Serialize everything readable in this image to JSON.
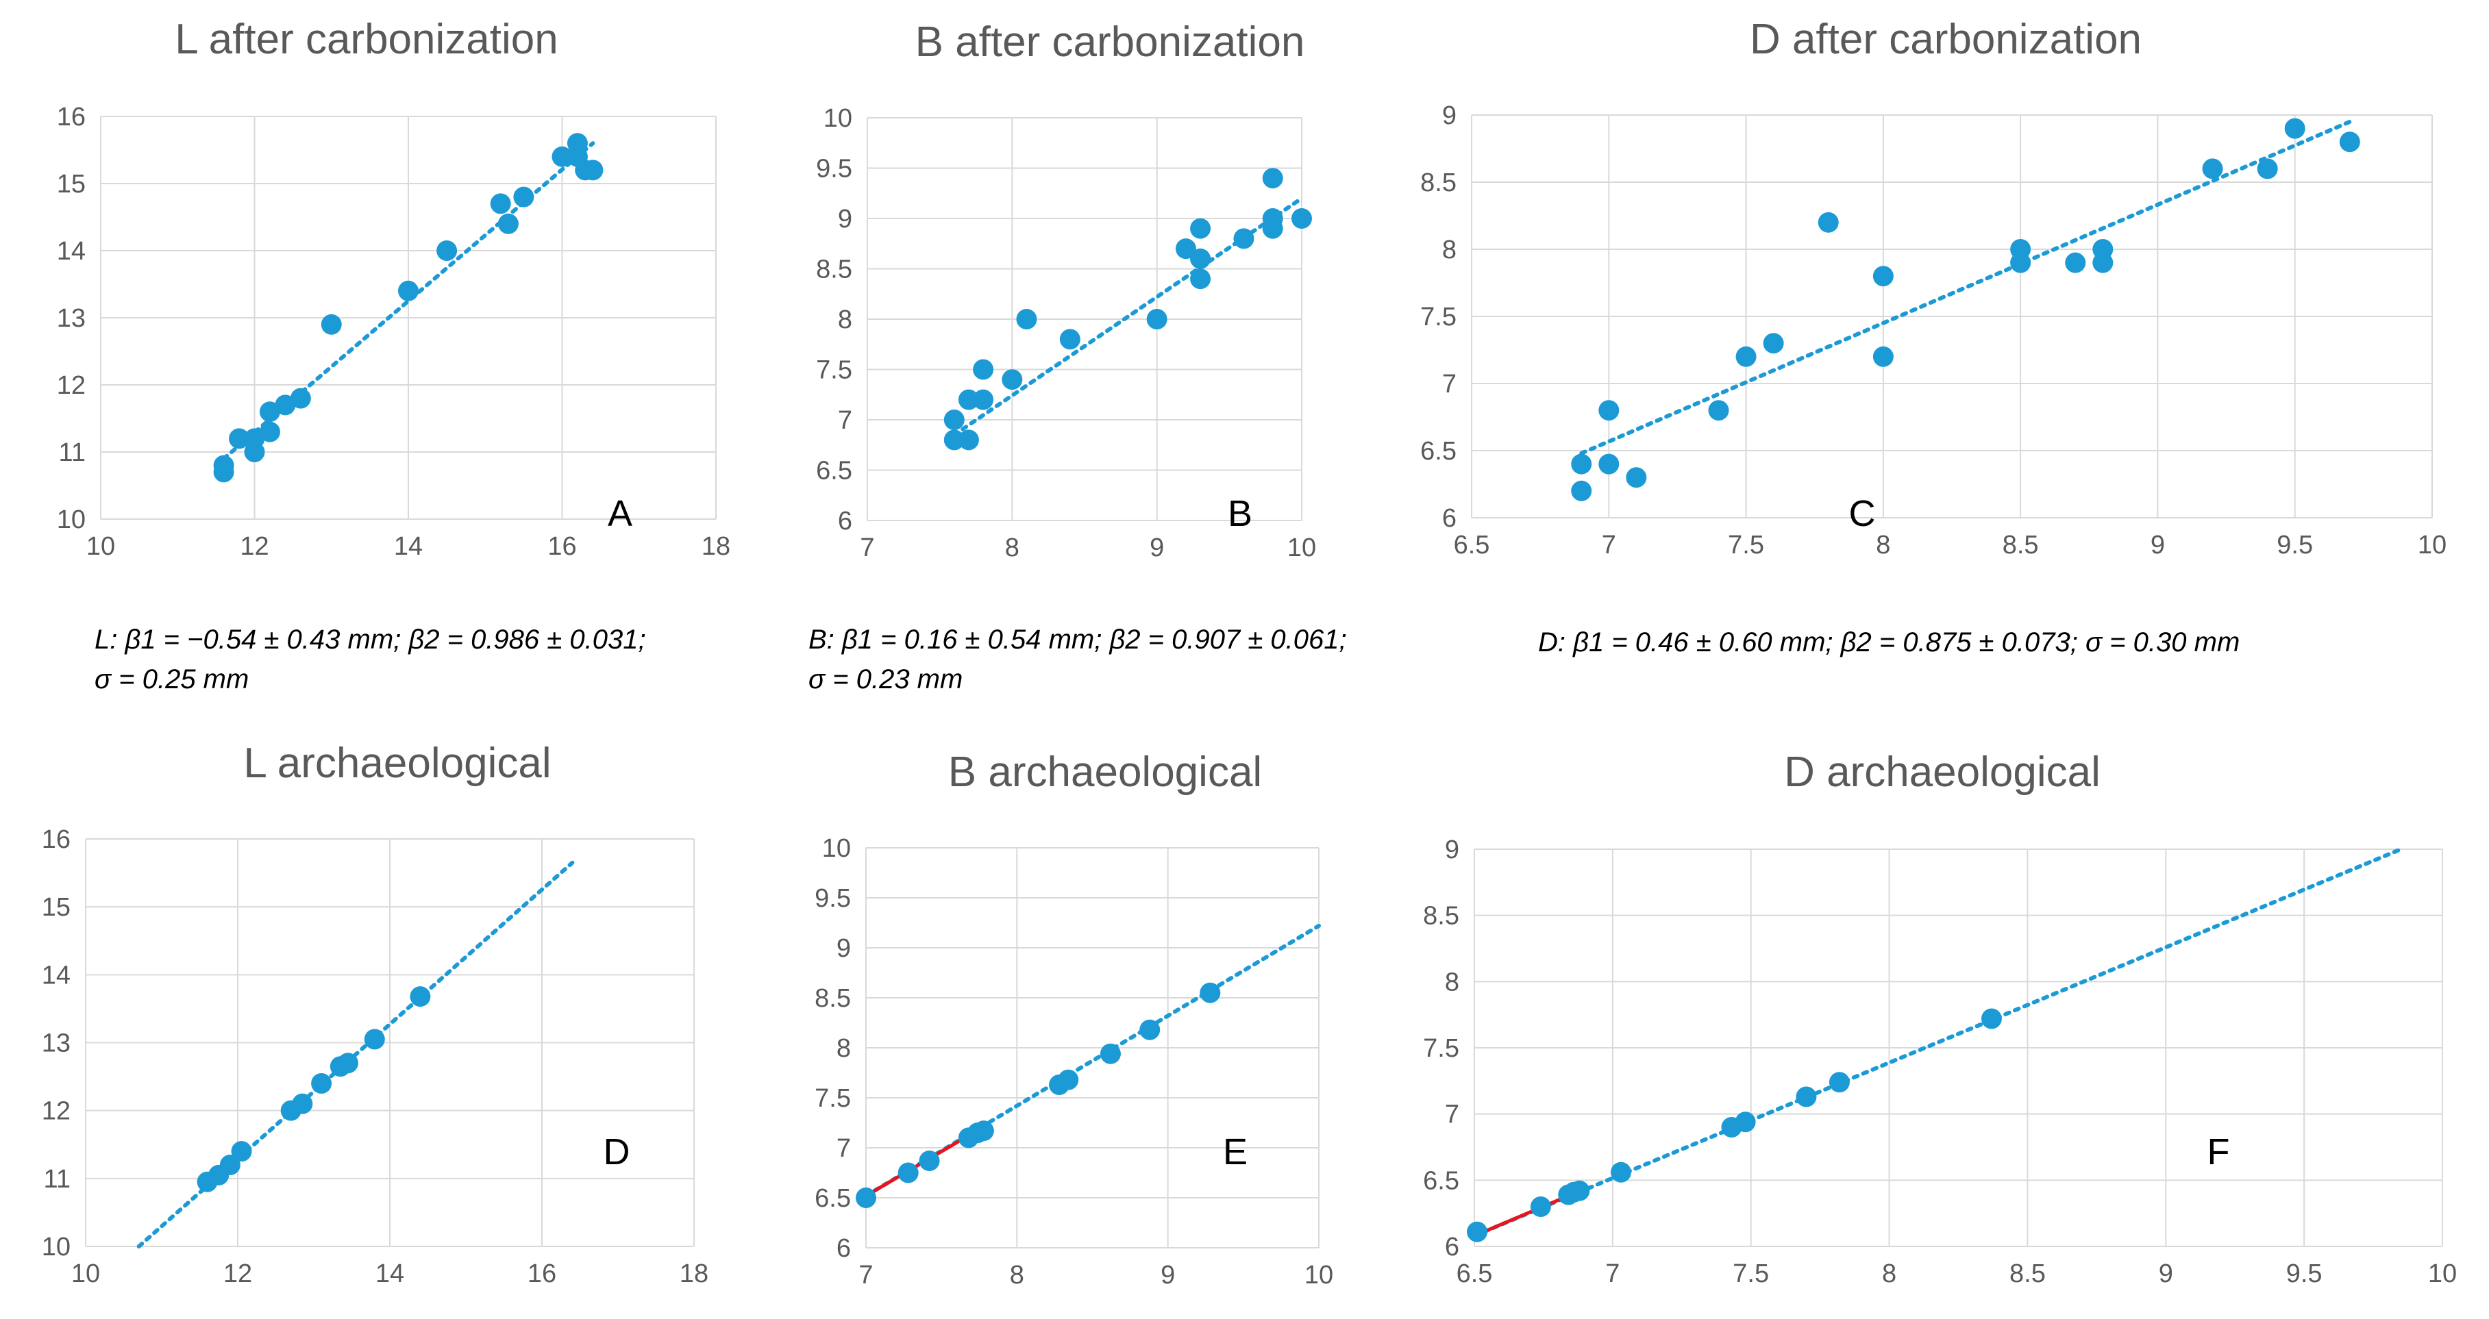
{
  "chart_data": [
    {
      "id": "A",
      "type": "scatter",
      "title": "L after carbonization",
      "panel_label": "A",
      "xlim": [
        10,
        18
      ],
      "ylim": [
        10,
        16
      ],
      "xticks": [
        "10",
        "12",
        "14",
        "16",
        "18"
      ],
      "yticks": [
        "10",
        "11",
        "12",
        "13",
        "14",
        "15",
        "16"
      ],
      "grid": true,
      "point_color": "#1c9ad6",
      "points": [
        [
          11.6,
          10.7
        ],
        [
          11.6,
          10.8
        ],
        [
          11.8,
          11.2
        ],
        [
          12.0,
          11.2
        ],
        [
          12.0,
          11.0
        ],
        [
          12.2,
          11.6
        ],
        [
          12.2,
          11.3
        ],
        [
          12.4,
          11.7
        ],
        [
          12.6,
          11.8
        ],
        [
          13.0,
          12.9
        ],
        [
          14.0,
          13.4
        ],
        [
          14.5,
          14.0
        ],
        [
          15.2,
          14.7
        ],
        [
          15.3,
          14.4
        ],
        [
          15.5,
          14.8
        ],
        [
          16.0,
          15.4
        ],
        [
          16.2,
          15.6
        ],
        [
          16.2,
          15.4
        ],
        [
          16.3,
          15.2
        ],
        [
          16.4,
          15.2
        ]
      ],
      "trendline": {
        "x": [
          11.6,
          16.4
        ],
        "y": [
          10.9,
          15.6
        ],
        "color": "#1c9ad6",
        "style": "dotted"
      }
    },
    {
      "id": "B",
      "type": "scatter",
      "title": "B after carbonization",
      "panel_label": "B",
      "xlim": [
        7,
        10
      ],
      "ylim": [
        6,
        10
      ],
      "xticks": [
        "7",
        "8",
        "9",
        "10"
      ],
      "yticks": [
        "6",
        "6.5",
        "7",
        "7.5",
        "8",
        "8.5",
        "9",
        "9.5",
        "10"
      ],
      "grid": true,
      "point_color": "#1c9ad6",
      "points": [
        [
          7.6,
          6.8
        ],
        [
          7.6,
          7.0
        ],
        [
          7.7,
          6.8
        ],
        [
          7.7,
          7.2
        ],
        [
          7.8,
          7.2
        ],
        [
          7.8,
          7.5
        ],
        [
          8.0,
          7.4
        ],
        [
          8.1,
          8.0
        ],
        [
          8.4,
          7.8
        ],
        [
          9.0,
          8.0
        ],
        [
          9.2,
          8.7
        ],
        [
          9.3,
          8.6
        ],
        [
          9.3,
          8.4
        ],
        [
          9.3,
          8.9
        ],
        [
          9.6,
          8.8
        ],
        [
          9.8,
          8.9
        ],
        [
          9.8,
          9.0
        ],
        [
          9.8,
          9.4
        ],
        [
          10.0,
          9.0
        ]
      ],
      "trendline": {
        "x": [
          7.6,
          10.0
        ],
        "y": [
          6.85,
          9.2
        ],
        "color": "#1c9ad6",
        "style": "dotted"
      }
    },
    {
      "id": "C",
      "type": "scatter",
      "title": "D after carbonization",
      "panel_label": "C",
      "xlim": [
        6.5,
        10
      ],
      "ylim": [
        6,
        9
      ],
      "xticks": [
        "6.5",
        "7",
        "7.5",
        "8",
        "8.5",
        "9",
        "9.5",
        "10"
      ],
      "yticks": [
        "6",
        "6.5",
        "7",
        "7.5",
        "8",
        "8.5",
        "9"
      ],
      "grid": true,
      "point_color": "#1c9ad6",
      "points": [
        [
          6.9,
          6.2
        ],
        [
          6.9,
          6.4
        ],
        [
          7.0,
          6.4
        ],
        [
          7.0,
          6.8
        ],
        [
          7.1,
          6.3
        ],
        [
          7.4,
          6.8
        ],
        [
          7.5,
          7.2
        ],
        [
          7.6,
          7.3
        ],
        [
          7.8,
          8.2
        ],
        [
          8.0,
          7.8
        ],
        [
          8.0,
          7.2
        ],
        [
          8.5,
          8.0
        ],
        [
          8.5,
          7.9
        ],
        [
          8.7,
          7.9
        ],
        [
          8.8,
          8.0
        ],
        [
          8.8,
          7.9
        ],
        [
          9.2,
          8.6
        ],
        [
          9.4,
          8.6
        ],
        [
          9.5,
          8.9
        ],
        [
          9.7,
          8.8
        ]
      ],
      "trendline": {
        "x": [
          6.9,
          9.7
        ],
        "y": [
          6.48,
          8.95
        ],
        "color": "#1c9ad6",
        "style": "dotted"
      }
    },
    {
      "id": "D",
      "type": "scatter",
      "title": "L archaeological",
      "panel_label": "D",
      "xlim": [
        10,
        18
      ],
      "ylim": [
        10,
        16
      ],
      "xticks": [
        "10",
        "12",
        "14",
        "16",
        "18"
      ],
      "yticks": [
        "10",
        "11",
        "12",
        "13",
        "14",
        "15",
        "16"
      ],
      "grid": true,
      "point_color": "#1c9ad6",
      "points": [
        [
          11.6,
          10.95
        ],
        [
          11.75,
          11.05
        ],
        [
          11.9,
          11.2
        ],
        [
          12.05,
          11.4
        ],
        [
          12.7,
          12.0
        ],
        [
          12.85,
          12.1
        ],
        [
          13.1,
          12.4
        ],
        [
          13.35,
          12.65
        ],
        [
          13.45,
          12.7
        ],
        [
          13.8,
          13.05
        ],
        [
          14.4,
          13.68
        ]
      ],
      "trendline": {
        "x": [
          10.7,
          16.4
        ],
        "y": [
          10.0,
          15.65
        ],
        "color": "#1c9ad6",
        "style": "dotted"
      }
    },
    {
      "id": "E",
      "type": "scatter",
      "title": "B archaeological",
      "panel_label": "E",
      "xlim": [
        7,
        10
      ],
      "ylim": [
        6,
        10
      ],
      "xticks": [
        "7",
        "8",
        "9",
        "10"
      ],
      "yticks": [
        "6",
        "6.5",
        "7",
        "7.5",
        "8",
        "8.5",
        "9",
        "9.5",
        "10"
      ],
      "grid": true,
      "point_color": "#1c9ad6",
      "points": [
        [
          7.0,
          6.5
        ],
        [
          7.28,
          6.75
        ],
        [
          7.42,
          6.87
        ],
        [
          7.68,
          7.1
        ],
        [
          7.74,
          7.15
        ],
        [
          7.78,
          7.17
        ],
        [
          8.28,
          7.63
        ],
        [
          8.34,
          7.68
        ],
        [
          8.62,
          7.94
        ],
        [
          8.88,
          8.18
        ],
        [
          9.28,
          8.55
        ]
      ],
      "trendline": {
        "x": [
          7.0,
          10.0
        ],
        "y": [
          6.52,
          9.22
        ],
        "color": "#1c9ad6",
        "style": "dotted"
      },
      "highlight_line": {
        "x": [
          7.0,
          7.7
        ],
        "y": [
          6.52,
          7.14
        ],
        "color": "#e8131b"
      }
    },
    {
      "id": "F",
      "type": "scatter",
      "title": "D archaeological",
      "panel_label": "F",
      "xlim": [
        6.5,
        10
      ],
      "ylim": [
        6,
        9
      ],
      "xticks": [
        "6.5",
        "7",
        "7.5",
        "8",
        "8.5",
        "9",
        "9.5",
        "10"
      ],
      "yticks": [
        "6",
        "6.5",
        "7",
        "7.5",
        "8",
        "8.5",
        "9"
      ],
      "grid": true,
      "point_color": "#1c9ad6",
      "points": [
        [
          6.51,
          6.11
        ],
        [
          6.74,
          6.3
        ],
        [
          6.84,
          6.39
        ],
        [
          6.86,
          6.41
        ],
        [
          6.88,
          6.42
        ],
        [
          7.03,
          6.56
        ],
        [
          7.43,
          6.9
        ],
        [
          7.48,
          6.94
        ],
        [
          7.7,
          7.13
        ],
        [
          7.82,
          7.24
        ],
        [
          8.37,
          7.72
        ]
      ],
      "trendline": {
        "x": [
          6.5,
          9.85
        ],
        "y": [
          6.08,
          9.0
        ],
        "color": "#1c9ad6",
        "style": "dotted"
      },
      "highlight_line": {
        "x": [
          6.5,
          6.86
        ],
        "y": [
          6.08,
          6.4
        ],
        "color": "#e8131b"
      }
    }
  ],
  "equations": {
    "L": [
      "L: β1 = −0.54 ± 0.43 mm; β2 = 0.986 ± 0.031;",
      "σ = 0.25 mm"
    ],
    "B": [
      "B: β1 = 0.16 ± 0.54 mm; β2 = 0.907 ± 0.061;",
      "σ = 0.23 mm"
    ],
    "D": [
      "D: β1 = 0.46 ± 0.60 mm; β2 = 0.875 ± 0.073; σ = 0.30 mm"
    ]
  }
}
